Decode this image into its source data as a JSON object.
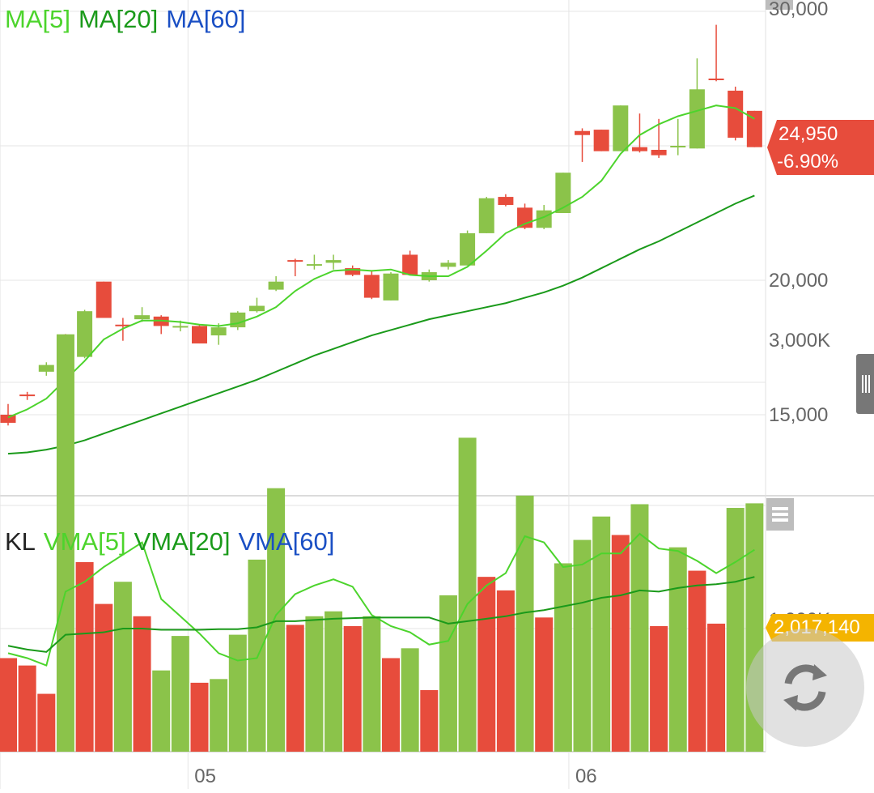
{
  "legend_price": {
    "ma5": "MA[5]",
    "ma20": "MA[20]",
    "ma60": "MA[60]"
  },
  "legend_volume": {
    "kl": "KL",
    "vma5": "VMA[5]",
    "vma20": "VMA[20]",
    "vma60": "VMA[60]"
  },
  "current": {
    "price": "24,950",
    "change": "-6.90%",
    "volume": "2,017,140"
  },
  "colors": {
    "up": "#8bc34a",
    "down": "#e74c3c",
    "ma5": "#4cd42c",
    "ma20": "#1a9a1a",
    "ma60": "#1a4fc4",
    "badge_price": "#e74c3c",
    "badge_volume": "#f4b400",
    "grid": "#e5e5e5",
    "axis_text": "#666666"
  },
  "icons": {
    "volume_menu": "menu-lines-icon",
    "side_handle": "drag-handle-icon",
    "refresh": "refresh-icon"
  },
  "chart_data": [
    {
      "type": "candlestick",
      "title": "",
      "xlabel": "",
      "ylabel": "",
      "ylim": [
        12500,
        30000
      ],
      "y_ticks": [
        "15,000",
        "20,000",
        "30,000"
      ],
      "y_tick_values": [
        15000,
        20000,
        30000
      ],
      "x_ticks": [
        "05",
        "06"
      ],
      "x_tick_index": [
        9.4,
        29.3
      ],
      "grid": true,
      "ohlc": [
        [
          15000,
          15400,
          14600,
          14700
        ],
        [
          15750,
          15850,
          15550,
          15700
        ],
        [
          16600,
          16950,
          16450,
          16850
        ],
        [
          17900,
          18000,
          17150,
          17600
        ],
        [
          17150,
          18900,
          17100,
          18850
        ],
        [
          19950,
          19950,
          18600,
          18600
        ],
        [
          18350,
          18600,
          17750,
          18300
        ],
        [
          18550,
          19000,
          18450,
          18700
        ],
        [
          18650,
          18700,
          18000,
          18300
        ],
        [
          18300,
          18500,
          18100,
          18300
        ],
        [
          18300,
          18350,
          17650,
          17650
        ],
        [
          17950,
          18400,
          17600,
          18250
        ],
        [
          18250,
          18850,
          18150,
          18800
        ],
        [
          18850,
          19350,
          18800,
          19050
        ],
        [
          19650,
          20150,
          19600,
          19950
        ],
        [
          20750,
          20800,
          20150,
          20700
        ],
        [
          20550,
          20950,
          20400,
          20600
        ],
        [
          20650,
          20950,
          20400,
          20750
        ],
        [
          20450,
          20550,
          20150,
          20200
        ],
        [
          20200,
          20350,
          19300,
          19350
        ],
        [
          19250,
          20300,
          19250,
          20250
        ],
        [
          20950,
          21100,
          20300,
          20200
        ],
        [
          20000,
          20400,
          19950,
          20300
        ],
        [
          20500,
          20750,
          20400,
          20650
        ],
        [
          20550,
          21850,
          20550,
          21750
        ],
        [
          21750,
          23100,
          21750,
          23050
        ],
        [
          23100,
          23200,
          22750,
          22800
        ],
        [
          22700,
          22850,
          21900,
          21950
        ],
        [
          21950,
          22800,
          21900,
          22600
        ],
        [
          22500,
          24000,
          22500,
          24000
        ],
        [
          25550,
          25650,
          24400,
          25400
        ],
        [
          25600,
          25600,
          24800,
          24800
        ],
        [
          24800,
          26500,
          24800,
          26500
        ],
        [
          24950,
          26200,
          24750,
          24800
        ],
        [
          24850,
          26000,
          24550,
          24650
        ],
        [
          25000,
          26000,
          24650,
          25000
        ],
        [
          24900,
          28250,
          24900,
          27100
        ],
        [
          27500,
          29500,
          27400,
          27450
        ],
        [
          27050,
          27200,
          25200,
          25300
        ],
        [
          26300,
          26300,
          24950,
          24950
        ]
      ],
      "series": [
        {
          "name": "MA[5]",
          "values": [
            14900,
            15200,
            15600,
            16300,
            17000,
            17800,
            18200,
            18500,
            18500,
            18450,
            18350,
            18300,
            18400,
            18650,
            19000,
            19600,
            20050,
            20350,
            20400,
            20350,
            20400,
            20200,
            20150,
            20150,
            20500,
            21100,
            21750,
            22100,
            22350,
            22700,
            23100,
            23700,
            24700,
            25400,
            25800,
            26100,
            26300,
            26500,
            26400,
            26000
          ]
        },
        {
          "name": "MA[20]",
          "values": [
            13550,
            13600,
            13700,
            13850,
            14050,
            14300,
            14550,
            14800,
            15050,
            15300,
            15550,
            15800,
            16050,
            16300,
            16600,
            16900,
            17200,
            17450,
            17700,
            17950,
            18150,
            18350,
            18550,
            18700,
            18850,
            19000,
            19150,
            19350,
            19550,
            19800,
            20100,
            20450,
            20800,
            21150,
            21450,
            21800,
            22150,
            22500,
            22850,
            23150
          ]
        },
        {
          "name": "MA[60]",
          "values": []
        }
      ]
    },
    {
      "type": "bar",
      "title": "",
      "ylim": [
        0,
        3600000
      ],
      "y_ticks": [
        "1,000K",
        "3,000K"
      ],
      "y_tick_values": [
        1000000,
        3000000
      ],
      "values": [
        760000,
        700000,
        470000,
        3390000,
        1540000,
        1200000,
        1380000,
        1100000,
        660000,
        940000,
        560000,
        590000,
        950000,
        1560000,
        2140000,
        1030000,
        1100000,
        1140000,
        1020000,
        1100000,
        760000,
        840000,
        500000,
        1270000,
        2550000,
        1420000,
        1310000,
        2080000,
        1090000,
        1530000,
        1720000,
        1910000,
        1760000,
        2010000,
        1020000,
        1660000,
        1470000,
        1040000,
        1980000,
        2017140
      ],
      "directions": [
        "down",
        "down",
        "down",
        "up",
        "down",
        "down",
        "up",
        "down",
        "up",
        "up",
        "down",
        "up",
        "up",
        "up",
        "up",
        "down",
        "up",
        "up",
        "down",
        "up",
        "down",
        "up",
        "down",
        "up",
        "up",
        "down",
        "down",
        "up",
        "down",
        "up",
        "up",
        "up",
        "down",
        "up",
        "down",
        "up",
        "down",
        "down",
        "up",
        "up"
      ],
      "series": [
        {
          "name": "VMA[5]",
          "values": [
            800000,
            760000,
            700000,
            1300000,
            1380000,
            1500000,
            1600000,
            1700000,
            1240000,
            1100000,
            960000,
            800000,
            740000,
            760000,
            1110000,
            1280000,
            1350000,
            1400000,
            1340000,
            1110000,
            1020000,
            970000,
            870000,
            900000,
            1200000,
            1350000,
            1450000,
            1750000,
            1700000,
            1500000,
            1520000,
            1610000,
            1610000,
            1770000,
            1650000,
            1630000,
            1550000,
            1450000,
            1540000,
            1640000
          ]
        },
        {
          "name": "VMA[20]",
          "values": [
            860000,
            830000,
            810000,
            950000,
            960000,
            970000,
            1000000,
            1000000,
            990000,
            990000,
            990000,
            995000,
            995000,
            1010000,
            1060000,
            1060000,
            1070000,
            1080000,
            1085000,
            1090000,
            1090000,
            1090000,
            1090000,
            1040000,
            1060000,
            1080000,
            1100000,
            1130000,
            1150000,
            1180000,
            1210000,
            1250000,
            1270000,
            1310000,
            1300000,
            1330000,
            1350000,
            1360000,
            1380000,
            1420000
          ]
        },
        {
          "name": "VMA[60]",
          "values": []
        }
      ]
    }
  ]
}
